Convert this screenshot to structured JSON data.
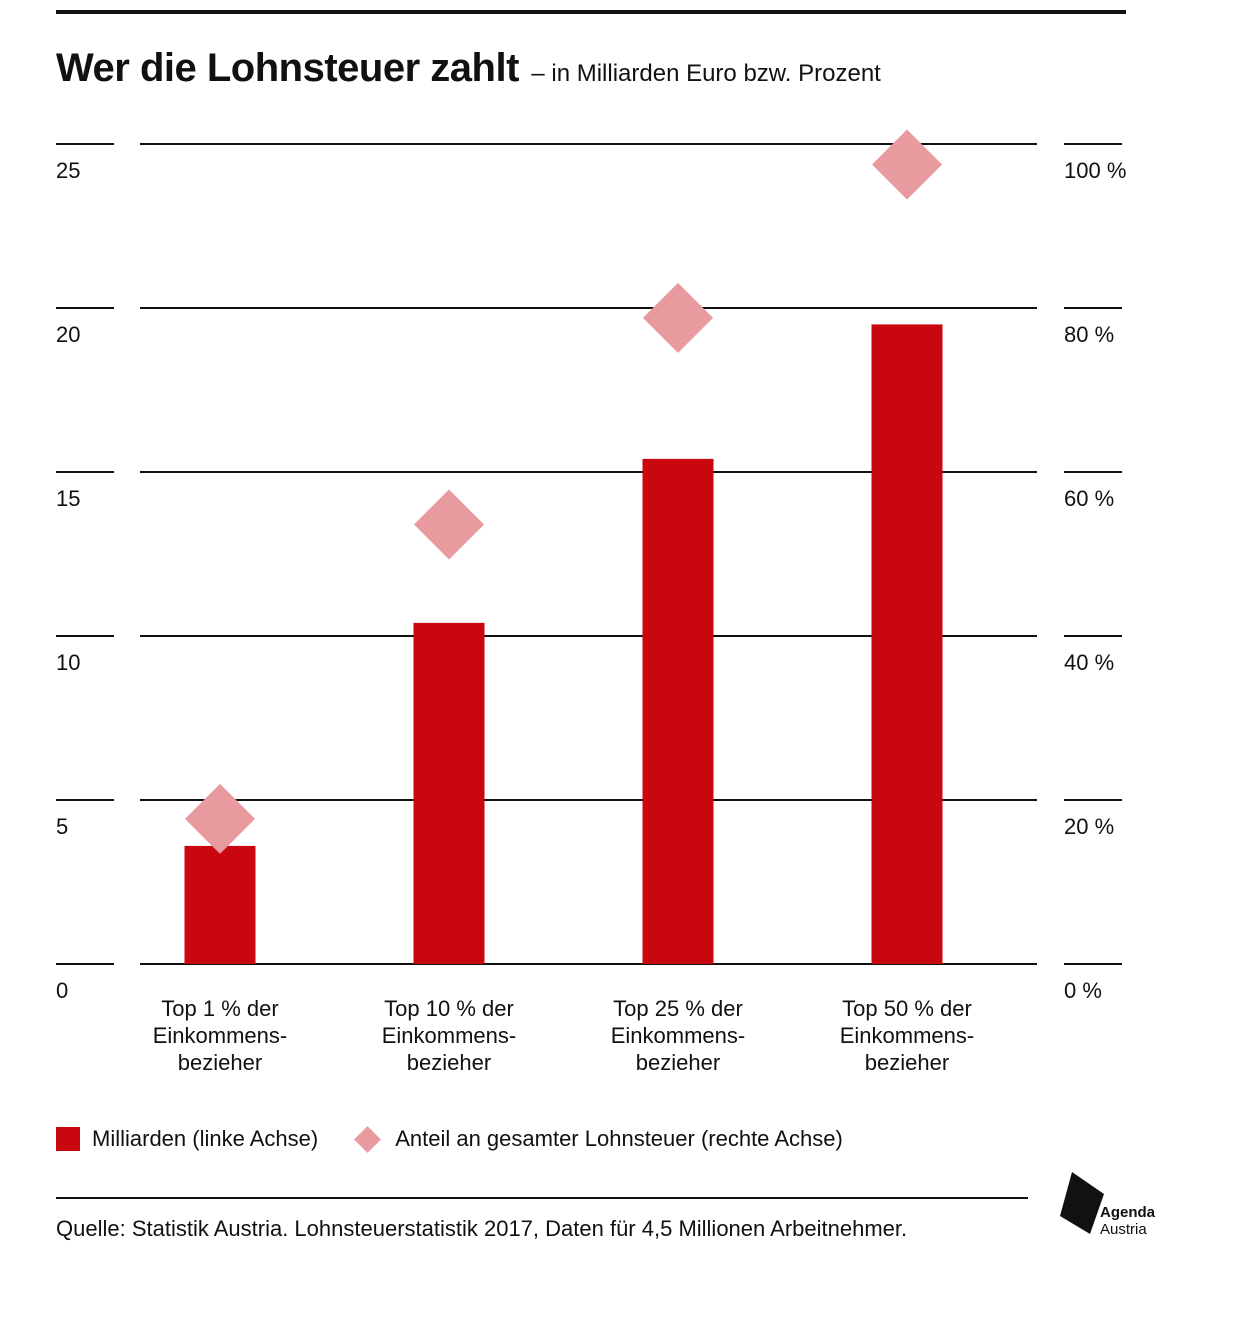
{
  "title": "Wer die Lohnsteuer zahlt",
  "subtitle": "– in Milliarden Euro bzw. Prozent",
  "chart_data": {
    "type": "bar",
    "categories": [
      [
        "Top 1 % der",
        "Einkommens-",
        "bezieher"
      ],
      [
        "Top 10 % der",
        "Einkommens-",
        "bezieher"
      ],
      [
        "Top 25 % der",
        "Einkommens-",
        "bezieher"
      ],
      [
        "Top 50 % der",
        "Einkommens-",
        "bezieher"
      ]
    ],
    "series": [
      {
        "name": "Milliarden (linke Achse)",
        "type": "bar",
        "axis": "left",
        "values": [
          3.6,
          10.4,
          15.4,
          19.5
        ],
        "color": "#c8070e"
      },
      {
        "name": "Anteil an gesamter Lohnsteuer (rechte Achse)",
        "type": "scatter",
        "marker": "diamond",
        "axis": "right",
        "values": [
          17.7,
          53.6,
          78.8,
          97.5
        ],
        "color": "#e99a9e"
      }
    ],
    "left_axis": {
      "ticks": [
        "0",
        "5",
        "10",
        "15",
        "20",
        "25"
      ],
      "ylim": [
        0,
        25
      ]
    },
    "right_axis": {
      "ticks": [
        "0 %",
        "20 %",
        "40 %",
        "60 %",
        "80 %",
        "100 %"
      ],
      "ylim": [
        0,
        100
      ]
    },
    "grid": true,
    "legend_position": "bottom-left"
  },
  "legend": {
    "bar_label": "Milliarden (linke Achse)",
    "diamond_label": "Anteil an gesamter Lohnsteuer (rechte Achse)"
  },
  "source": "Quelle: Statistik Austria. Lohnsteuerstatistik 2017, Daten für 4,5 Millionen Arbeitnehmer.",
  "logo": {
    "line1": "Agenda",
    "line2": "Austria"
  }
}
